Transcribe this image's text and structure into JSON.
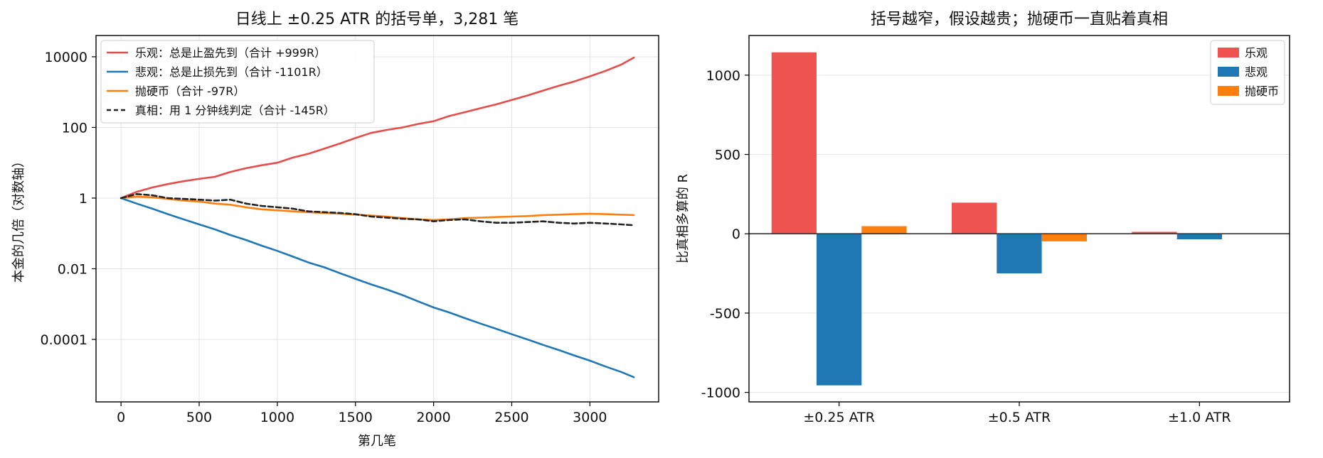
{
  "chart_data": [
    {
      "type": "line",
      "title": "日线上 ±0.25 ATR 的括号单，3,281 笔",
      "xlabel": "第几笔",
      "ylabel": "本金的几倍（对数轴）",
      "yscale": "log",
      "xlim": [
        -160,
        3440
      ],
      "ylim": [
        1.7e-06,
        40000
      ],
      "xticks": [
        0,
        500,
        1000,
        1500,
        2000,
        2500,
        3000
      ],
      "xtick_labels": [
        "0",
        "500",
        "1000",
        "1500",
        "2000",
        "2500",
        "3000"
      ],
      "yticks": [
        0.0001,
        0.01,
        1,
        100,
        10000
      ],
      "ytick_labels": [
        "0.0001",
        "0.01",
        "1",
        "100",
        "10000"
      ],
      "grid": true,
      "legend_position": "top-left",
      "series": [
        {
          "name": "乐观：总是止盈先到（合计 +999R）",
          "color": "#e84c4a",
          "dash": "solid",
          "x": [
            0,
            100,
            200,
            300,
            400,
            500,
            600,
            700,
            800,
            900,
            1000,
            1100,
            1200,
            1300,
            1400,
            1500,
            1600,
            1700,
            1800,
            1900,
            2000,
            2100,
            2200,
            2300,
            2400,
            2500,
            2600,
            2700,
            2800,
            2900,
            3000,
            3100,
            3200,
            3281
          ],
          "y": [
            1,
            1.5,
            2,
            2.5,
            3,
            3.5,
            4,
            5.5,
            7,
            8.5,
            10,
            14,
            18,
            25,
            35,
            50,
            70,
            85,
            100,
            125,
            150,
            210,
            270,
            350,
            450,
            600,
            800,
            1100,
            1500,
            2000,
            2800,
            4000,
            6000,
            9500
          ]
        },
        {
          "name": "悲观：总是止损先到（合计 -1101R）",
          "color": "#1f77b4",
          "dash": "solid",
          "x": [
            0,
            100,
            200,
            300,
            400,
            500,
            600,
            700,
            800,
            900,
            1000,
            1100,
            1200,
            1300,
            1400,
            1500,
            1600,
            1700,
            1800,
            1900,
            2000,
            2100,
            2200,
            2300,
            2400,
            2500,
            2600,
            2700,
            2800,
            2900,
            3000,
            3100,
            3200,
            3281
          ],
          "y": [
            1,
            0.7,
            0.5,
            0.35,
            0.25,
            0.18,
            0.13,
            0.09,
            0.065,
            0.045,
            0.032,
            0.022,
            0.015,
            0.011,
            0.0075,
            0.0052,
            0.0036,
            0.0026,
            0.0018,
            0.0012,
            0.0008,
            0.00058,
            0.0004,
            0.00028,
            0.0002,
            0.00014,
            0.0001,
            7e-05,
            5e-05,
            3.5e-05,
            2.5e-05,
            1.7e-05,
            1.2e-05,
            8.5e-06
          ]
        },
        {
          "name": "抛硬币（合计 -97R）",
          "color": "#ff7f0e",
          "dash": "solid",
          "x": [
            0,
            100,
            200,
            300,
            400,
            500,
            600,
            700,
            800,
            900,
            1000,
            1100,
            1200,
            1300,
            1400,
            1500,
            1600,
            1700,
            1800,
            1900,
            2000,
            2100,
            2200,
            2300,
            2400,
            2500,
            2600,
            2700,
            2800,
            2900,
            3000,
            3100,
            3200,
            3281
          ],
          "y": [
            1,
            1.1,
            1.05,
            0.95,
            0.85,
            0.8,
            0.7,
            0.65,
            0.55,
            0.48,
            0.45,
            0.42,
            0.4,
            0.38,
            0.36,
            0.34,
            0.32,
            0.3,
            0.27,
            0.25,
            0.24,
            0.25,
            0.27,
            0.28,
            0.29,
            0.3,
            0.31,
            0.33,
            0.34,
            0.35,
            0.36,
            0.35,
            0.34,
            0.33
          ]
        },
        {
          "name": "真相：用 1 分钟线判定（合计 -145R）",
          "color": "#222222",
          "dash": "dashed",
          "x": [
            0,
            100,
            200,
            300,
            400,
            500,
            600,
            700,
            800,
            900,
            1000,
            1100,
            1200,
            1300,
            1400,
            1500,
            1600,
            1700,
            1800,
            1900,
            2000,
            2100,
            2200,
            2300,
            2400,
            2500,
            2600,
            2700,
            2800,
            2900,
            3000,
            3100,
            3200,
            3281
          ],
          "y": [
            1,
            1.3,
            1.2,
            1,
            0.95,
            0.9,
            0.85,
            0.9,
            0.7,
            0.6,
            0.55,
            0.5,
            0.42,
            0.4,
            0.38,
            0.35,
            0.3,
            0.28,
            0.26,
            0.25,
            0.22,
            0.24,
            0.25,
            0.22,
            0.2,
            0.2,
            0.21,
            0.22,
            0.2,
            0.19,
            0.2,
            0.19,
            0.18,
            0.17
          ]
        }
      ]
    },
    {
      "type": "bar",
      "title": "括号越窄，假设越贵；抛硬币一直贴着真相",
      "xlabel": "",
      "ylabel": "比真相多算的 R",
      "categories": [
        "±0.25 ATR",
        "±0.5 ATR",
        "±1.0 ATR"
      ],
      "ylim": [
        -1060,
        1250
      ],
      "yticks": [
        1000,
        500,
        0,
        -500,
        -1000
      ],
      "ytick_labels": [
        "1000",
        "500",
        "0",
        "-500",
        "-1000"
      ],
      "grid": true,
      "legend_position": "top-right",
      "series": [
        {
          "name": "乐观",
          "color": "#ef5350",
          "values": [
            1144,
            196,
            12
          ]
        },
        {
          "name": "悲观",
          "color": "#1f77b4",
          "values": [
            -956,
            -250,
            -35
          ]
        },
        {
          "name": "抛硬币",
          "color": "#ff7f0e",
          "values": [
            48,
            -48,
            -3
          ]
        }
      ]
    }
  ]
}
